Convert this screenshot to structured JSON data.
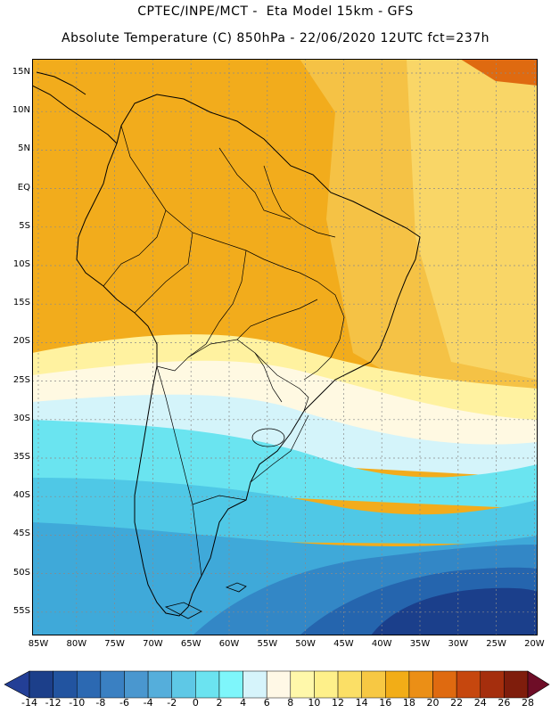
{
  "title_line1": "CPTEC/INPE/MCT -  Eta Model 15km - GFS",
  "title_line2": "Absolute Temperature (C) 850hPa - 22/06/2020 12UTC fct=237h",
  "lat_labels": [
    "15N",
    "10N",
    "5N",
    "EQ",
    "5S",
    "10S",
    "15S",
    "20S",
    "25S",
    "30S",
    "35S",
    "40S",
    "45S",
    "50S",
    "55S"
  ],
  "lon_labels": [
    "85W",
    "80W",
    "75W",
    "70W",
    "65W",
    "60W",
    "55W",
    "50W",
    "45W",
    "40W",
    "35W",
    "30W",
    "25W",
    "20W"
  ],
  "colorbar": {
    "levels": [
      "-14",
      "-12",
      "-10",
      "-8",
      "-6",
      "-4",
      "-2",
      "0",
      "2",
      "4",
      "6",
      "8",
      "10",
      "12",
      "14",
      "16",
      "18",
      "20",
      "22",
      "24",
      "26",
      "28"
    ],
    "colors": [
      "#1c3f8a",
      "#2254a0",
      "#2c69b2",
      "#3a80c2",
      "#4a97cf",
      "#55aedb",
      "#5ec8e6",
      "#6be3f0",
      "#7ef6fb",
      "#d6f4fb",
      "#fff8e6",
      "#fff8aa",
      "#fef08a",
      "#fbdf66",
      "#f7c843",
      "#f2ad17",
      "#eb8f16",
      "#df6a10",
      "#c6470e",
      "#a52e0d",
      "#7f1d0c"
    ],
    "low_color": "#233f96",
    "high_color": "#6e0d27"
  },
  "map_colors": {
    "hot": "#f2ac1c",
    "warm": "#f5c245",
    "mild": "#fad86a",
    "pale": "#fff2a0",
    "cream": "#fff9e2",
    "icy": "#d4f4fa",
    "cyan": "#6ae4f0",
    "aqua": "#4fc8e6",
    "sky": "#3fa9d9",
    "blue": "#3387c6",
    "deep": "#2565ae",
    "navy": "#1b3f8b",
    "border": "#000000",
    "grid": "#8a8a8a"
  }
}
